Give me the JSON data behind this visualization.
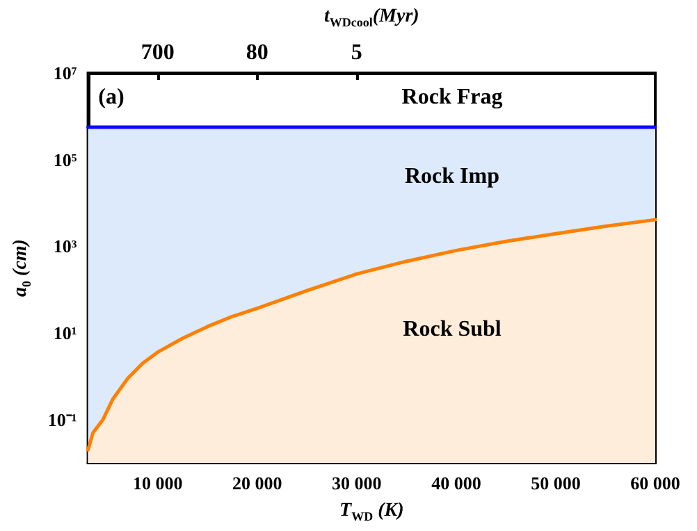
{
  "chart_data": {
    "type": "area",
    "xlabel": "T$_{WD}$ (K)",
    "ylabel": "a$_{0}$ (cm)",
    "x2label": "t$_{WDcool}$(Myr)",
    "log": "y",
    "xlim": [
      3000,
      60000
    ],
    "ylim": [
      0.01,
      10000000
    ],
    "xticks": [
      {
        "value": 10000,
        "label": "10 000"
      },
      {
        "value": 20000,
        "label": "20 000"
      },
      {
        "value": 30000,
        "label": "30 000"
      },
      {
        "value": 40000,
        "label": "40 000"
      },
      {
        "value": 50000,
        "label": "50 000"
      },
      {
        "value": 60000,
        "label": "60 000"
      }
    ],
    "yticks": [
      {
        "value": 0.1,
        "label": "10⁻¹"
      },
      {
        "value": 10,
        "label": "10¹"
      },
      {
        "value": 1000,
        "label": "10³"
      },
      {
        "value": 100000,
        "label": "10⁵"
      },
      {
        "value": 10000000,
        "label": "10⁷"
      }
    ],
    "bands": [
      {
        "axis": "y",
        "from": 0.01,
        "to": 560000,
        "color": "#dceafc"
      }
    ],
    "series": [
      {
        "type": "line",
        "color": "#0a0aff",
        "x": [
          3000,
          60000
        ],
        "values": [
          560000,
          560000
        ]
      },
      {
        "color": "#ff8000",
        "x": [
          3000,
          3500,
          4500,
          5500,
          7000,
          8500,
          10000,
          12500,
          15000,
          17500,
          20000,
          25000,
          30000,
          35000,
          40000,
          45000,
          50000,
          55000,
          60000
        ],
        "values": [
          0.02,
          0.05,
          0.1,
          0.3,
          0.9,
          2,
          3.6,
          7.5,
          14,
          24,
          37,
          95,
          230,
          450,
          800,
          1300,
          1950,
          2900,
          4100
        ]
      }
    ],
    "annotations": [
      "(a)",
      "Rock Frag",
      "Rock Imp",
      "Rock Subl",
      "700",
      "80",
      "5"
    ]
  }
}
